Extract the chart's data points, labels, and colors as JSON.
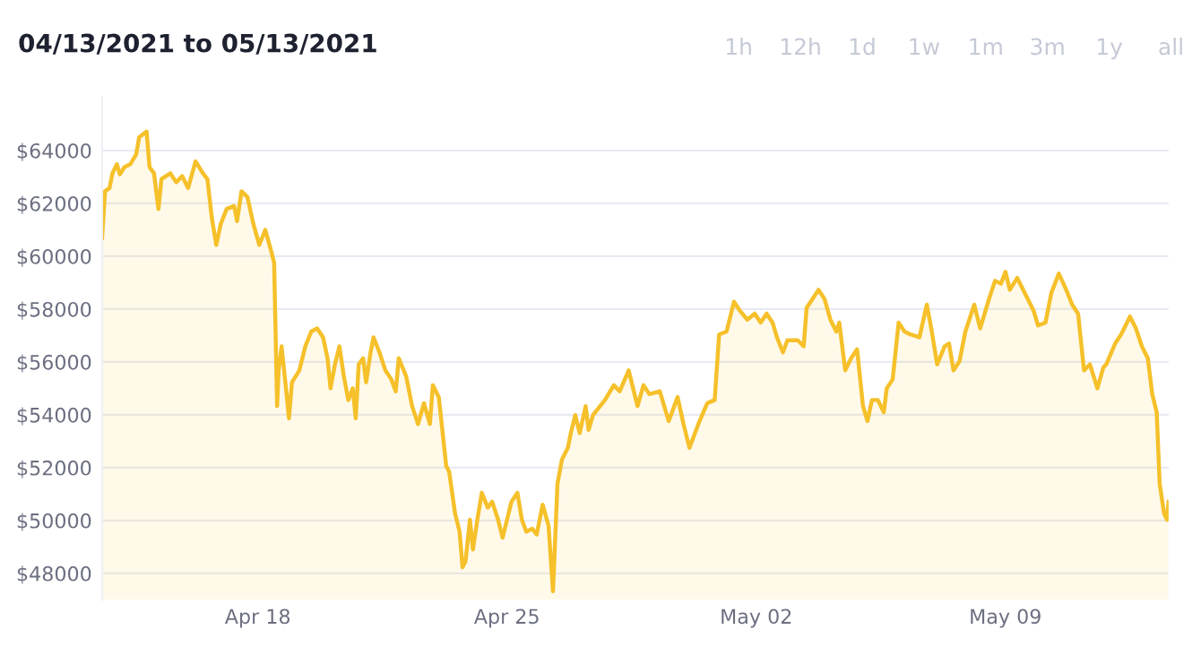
{
  "chart_data": {
    "type": "area",
    "title": "04/13/2021 to 05/13/2021",
    "annotations": [
      "1h",
      "12h",
      "1d",
      "1w",
      "1m",
      "3m",
      "1y",
      "all"
    ],
    "x": [
      "2021-04-13T15:00",
      "2021-04-13T17:00",
      "2021-04-13T20:00",
      "2021-04-13T22:00",
      "2021-04-14T01:00",
      "2021-04-14T03:00",
      "2021-04-14T06:00",
      "2021-04-14T10:00",
      "2021-04-14T14:00",
      "2021-04-14T16:00",
      "2021-04-14T21:00",
      "2021-04-14T23:00",
      "2021-04-15T02:00",
      "2021-04-15T05:00",
      "2021-04-15T07:00",
      "2021-04-15T13:00",
      "2021-04-15T17:00",
      "2021-04-15T21:00",
      "2021-04-16T01:00",
      "2021-04-16T06:00",
      "2021-04-16T11:00",
      "2021-04-16T14:00",
      "2021-04-16T17:00",
      "2021-04-16T20:00",
      "2021-04-16T23:00",
      "2021-04-17T03:00",
      "2021-04-17T08:00",
      "2021-04-17T10:00",
      "2021-04-17T13:00",
      "2021-04-17T17:00",
      "2021-04-17T21:00",
      "2021-04-18T01:00",
      "2021-04-18T05:00",
      "2021-04-18T09:00",
      "2021-04-18T11:00",
      "2021-04-18T13:00",
      "2021-04-18T14:00",
      "2021-04-18T16:00",
      "2021-04-18T19:00",
      "2021-04-18T21:00",
      "2021-04-18T23:00",
      "2021-04-19T04:00",
      "2021-04-19T08:00",
      "2021-04-19T12:00",
      "2021-04-19T16:00",
      "2021-04-19T20:00",
      "2021-04-19T23:00",
      "2021-04-20T01:00",
      "2021-04-20T04:00",
      "2021-04-20T07:00",
      "2021-04-20T10:00",
      "2021-04-20T13:00",
      "2021-04-20T16:00",
      "2021-04-20T18:00",
      "2021-04-20T20:00",
      "2021-04-20T23:00",
      "2021-04-21T01:00",
      "2021-04-21T04:00",
      "2021-04-21T06:00",
      "2021-04-21T10:00",
      "2021-04-21T14:00",
      "2021-04-21T18:00",
      "2021-04-21T21:00",
      "2021-04-21T23:00",
      "2021-04-22T04:00",
      "2021-04-22T08:00",
      "2021-04-22T12:00",
      "2021-04-22T16:00",
      "2021-04-22T20:00",
      "2021-04-22T22:00",
      "2021-04-23T02:00",
      "2021-04-23T07:00",
      "2021-04-23T09:00",
      "2021-04-23T13:00",
      "2021-04-23T16:00",
      "2021-04-23T18:00",
      "2021-04-23T20:00",
      "2021-04-23T23:00",
      "2021-04-24T01:00",
      "2021-04-24T04:00",
      "2021-04-24T07:00",
      "2021-04-24T11:00",
      "2021-04-24T14:00",
      "2021-04-24T18:00",
      "2021-04-24T21:00",
      "2021-04-25T00:00",
      "2021-04-25T03:00",
      "2021-04-25T07:00",
      "2021-04-25T10:00",
      "2021-04-25T13:00",
      "2021-04-25T17:00",
      "2021-04-25T20:00",
      "2021-04-26T00:00",
      "2021-04-26T04:00",
      "2021-04-26T07:00",
      "2021-04-26T10:00",
      "2021-04-26T13:00",
      "2021-04-26T17:00",
      "2021-04-26T19:00",
      "2021-04-26T22:00",
      "2021-04-27T01:00",
      "2021-04-27T05:00",
      "2021-04-27T07:00",
      "2021-04-27T10:00",
      "2021-04-27T18:00",
      "2021-04-28T00:00",
      "2021-04-28T04:00",
      "2021-04-28T10:00",
      "2021-04-28T16:00",
      "2021-04-28T20:00",
      "2021-04-29T00:00",
      "2021-04-29T07:00",
      "2021-04-29T13:00",
      "2021-04-29T19:00",
      "2021-04-29T23:00",
      "2021-04-30T03:00",
      "2021-04-30T09:00",
      "2021-04-30T15:00",
      "2021-04-30T20:00",
      "2021-04-30T23:00",
      "2021-05-01T04:00",
      "2021-05-01T09:00",
      "2021-05-01T13:00",
      "2021-05-01T18:00",
      "2021-05-01T23:00",
      "2021-05-02T03:00",
      "2021-05-02T07:00",
      "2021-05-02T11:00",
      "2021-05-02T14:00",
      "2021-05-02T18:00",
      "2021-05-02T21:00",
      "2021-05-03T04:00",
      "2021-05-03T08:00",
      "2021-05-03T10:00",
      "2021-05-03T14:00",
      "2021-05-03T18:00",
      "2021-05-03T22:00",
      "2021-05-04T02:00",
      "2021-05-04T06:00",
      "2021-05-04T08:00",
      "2021-05-04T12:00",
      "2021-05-04T16:00",
      "2021-05-04T20:00",
      "2021-05-05T00:00",
      "2021-05-05T03:00",
      "2021-05-05T06:00",
      "2021-05-05T10:00",
      "2021-05-05T14:00",
      "2021-05-05T16:00",
      "2021-05-05T20:00",
      "2021-05-06T00:00",
      "2021-05-06T04:00",
      "2021-05-06T08:00",
      "2021-05-06T14:00",
      "2021-05-06T19:00",
      "2021-05-06T22:00",
      "2021-05-07T02:00",
      "2021-05-07T07:00",
      "2021-05-07T10:00",
      "2021-05-07T13:00",
      "2021-05-07T17:00",
      "2021-05-07T21:00",
      "2021-05-08T03:00",
      "2021-05-08T07:00",
      "2021-05-08T13:00",
      "2021-05-08T17:00",
      "2021-05-08T21:00",
      "2021-05-09T00:00",
      "2021-05-09T03:00",
      "2021-05-09T08:00",
      "2021-05-09T13:00",
      "2021-05-09T19:00",
      "2021-05-09T22:00",
      "2021-05-10T03:00",
      "2021-05-10T07:00",
      "2021-05-10T12:00",
      "2021-05-10T17:00",
      "2021-05-10T21:00",
      "2021-05-11T01:00",
      "2021-05-11T05:00",
      "2021-05-11T09:00",
      "2021-05-11T14:00",
      "2021-05-11T18:00",
      "2021-05-11T20:00",
      "2021-05-12T02:00",
      "2021-05-12T06:00",
      "2021-05-12T12:00",
      "2021-05-12T16:00",
      "2021-05-12T20:00",
      "2021-05-13T00:00",
      "2021-05-13T03:00",
      "2021-05-13T06:00",
      "2021-05-13T08:00",
      "2021-05-13T11:00",
      "2021-05-13T13:00",
      "2021-05-13T14:00"
    ],
    "series": [
      {
        "color": "#f5c02a",
        "values": [
          60700,
          62460,
          62580,
          63140,
          63480,
          63100,
          63370,
          63480,
          63860,
          64500,
          64720,
          63370,
          63140,
          61790,
          62920,
          63140,
          62800,
          63030,
          62580,
          63590,
          63140,
          62920,
          61450,
          60430,
          61220,
          61790,
          61900,
          61330,
          62460,
          62240,
          61220,
          60430,
          61000,
          60200,
          59750,
          54330,
          55680,
          56590,
          55000,
          53870,
          55230,
          55680,
          56590,
          57150,
          57270,
          56930,
          56140,
          55000,
          55910,
          56590,
          55460,
          54560,
          55000,
          53870,
          55910,
          56140,
          55230,
          56360,
          56930,
          56360,
          55680,
          55340,
          54890,
          56140,
          55460,
          54330,
          53650,
          54440,
          53650,
          55120,
          54670,
          52070,
          51840,
          50260,
          49580,
          48230,
          48450,
          50030,
          48900,
          50030,
          51050,
          50490,
          50710,
          50030,
          49350,
          50030,
          50710,
          51050,
          50030,
          49580,
          49690,
          49470,
          50600,
          49810,
          47320,
          51390,
          52300,
          52750,
          53310,
          53990,
          53310,
          54330,
          53430,
          53990,
          54560,
          55120,
          54890,
          55680,
          54330,
          55120,
          54780,
          54890,
          53760,
          54670,
          53650,
          52750,
          53650,
          54440,
          54560,
          57040,
          57150,
          58280,
          57940,
          57600,
          57830,
          57490,
          57830,
          57490,
          56930,
          56360,
          56820,
          56820,
          56590,
          58050,
          58390,
          58730,
          58390,
          57600,
          57150,
          57490,
          55680,
          56140,
          56480,
          54330,
          53760,
          54560,
          54560,
          54100,
          55000,
          55340,
          57490,
          57150,
          57040,
          56930,
          58170,
          57270,
          55910,
          56590,
          56700,
          55680,
          56020,
          57150,
          58170,
          57270,
          58390,
          59070,
          58960,
          59410,
          58730,
          59180,
          58620,
          57940,
          57380,
          57490,
          58620,
          59340,
          58730,
          58170,
          57830,
          55680,
          55910,
          55000,
          55790,
          55910,
          56700,
          57040,
          57720,
          57270,
          56590,
          56140,
          54780,
          54100,
          51390,
          50260,
          50030,
          50710
        ]
      }
    ],
    "xlim": [
      "2021-04-13T15:00",
      "2021-05-13T14:00"
    ],
    "xticks": [
      {
        "value": "2021-04-18",
        "label": "Apr 18"
      },
      {
        "value": "2021-04-25",
        "label": "Apr 25"
      },
      {
        "value": "2021-05-02",
        "label": "May 02"
      },
      {
        "value": "2021-05-09",
        "label": "May 09"
      }
    ],
    "ylim": [
      47000,
      66000
    ],
    "yticks": [
      {
        "value": 48000,
        "label": "$48000"
      },
      {
        "value": 50000,
        "label": "$50000"
      },
      {
        "value": 52000,
        "label": "$52000"
      },
      {
        "value": 54000,
        "label": "$54000"
      },
      {
        "value": 56000,
        "label": "$56000"
      },
      {
        "value": 58000,
        "label": "$58000"
      },
      {
        "value": 60000,
        "label": "$60000"
      },
      {
        "value": 62000,
        "label": "$62000"
      },
      {
        "value": 64000,
        "label": "$64000"
      }
    ],
    "grid": "y",
    "legend": false,
    "marker": "none",
    "line_style": "solid"
  }
}
